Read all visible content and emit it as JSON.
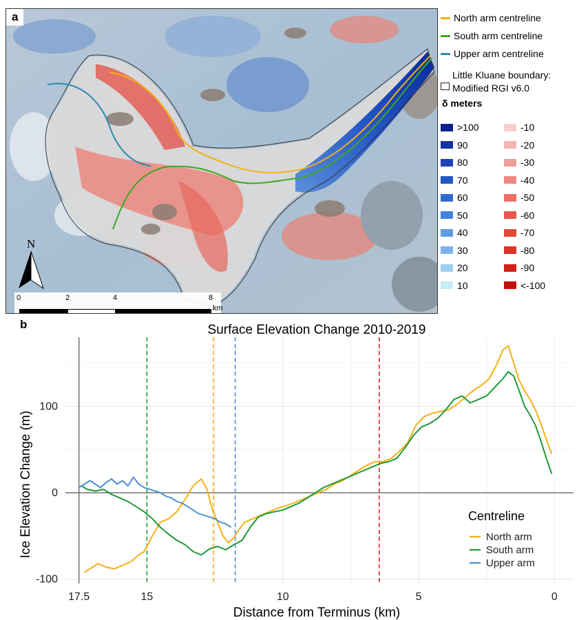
{
  "panel_a": {
    "letter": "a",
    "north_label": "N",
    "scale_labels": [
      "0",
      "2",
      "4",
      "8"
    ],
    "scale_unit": "km",
    "legend": {
      "lines": [
        {
          "label": "North arm centreline",
          "color": "#f5b014"
        },
        {
          "label": "South arm centreline",
          "color": "#3da81e"
        },
        {
          "label": "Upper arm centreline",
          "color": "#2a8bb0"
        }
      ],
      "boundary_line1": "Little Kluane boundary:",
      "boundary_line2": "Modified RGI v6.0",
      "delta_title": "δ meters",
      "blue_bins": [
        {
          "label": ">100",
          "color": "#0a1f8c"
        },
        {
          "label": "90",
          "color": "#1333a6"
        },
        {
          "label": "80",
          "color": "#1d44b6"
        },
        {
          "label": "70",
          "color": "#2456c4"
        },
        {
          "label": "60",
          "color": "#2f6bd0"
        },
        {
          "label": "50",
          "color": "#4484da"
        },
        {
          "label": "40",
          "color": "#5e9be2"
        },
        {
          "label": "30",
          "color": "#7cb2ea"
        },
        {
          "label": "20",
          "color": "#9fcdf0"
        },
        {
          "label": "10",
          "color": "#c3ecf4"
        }
      ],
      "red_bins": [
        {
          "label": "-10",
          "color": "#f7cfd0"
        },
        {
          "label": "-20",
          "color": "#f4b3b1"
        },
        {
          "label": "-30",
          "color": "#f19d97"
        },
        {
          "label": "-40",
          "color": "#ee877e"
        },
        {
          "label": "-50",
          "color": "#eb7065"
        },
        {
          "label": "-60",
          "color": "#e65a4d"
        },
        {
          "label": "-70",
          "color": "#e04838"
        },
        {
          "label": "-80",
          "color": "#d93426"
        },
        {
          "label": "-90",
          "color": "#d12217"
        },
        {
          "label": "<-100",
          "color": "#c4100a"
        }
      ]
    }
  },
  "panel_b": {
    "letter": "b"
  },
  "chart_data": {
    "type": "line",
    "title": "Surface Elevation Change 2010-2019",
    "xlabel": "Distance from Terminus (km)",
    "ylabel": "Ice Elevation Change (m)",
    "x_reversed": true,
    "xlim": [
      18,
      -0.7
    ],
    "ylim": [
      -105,
      180
    ],
    "x_ticks": [
      17.5,
      15,
      10,
      5,
      0
    ],
    "y_ticks": [
      -100,
      0,
      100
    ],
    "grid": true,
    "legend_title": "Centreline",
    "legend_position": "bottom-right",
    "series": [
      {
        "name": "North arm",
        "color": "#f5b014",
        "x": [
          17.3,
          17.1,
          16.8,
          16.5,
          16.2,
          15.9,
          15.6,
          15.3,
          15.1,
          14.8,
          14.5,
          14.2,
          13.9,
          13.6,
          13.3,
          13.0,
          12.8,
          12.6,
          12.4,
          12.2,
          12.0,
          11.8,
          11.6,
          11.4,
          11.1,
          10.8,
          10.5,
          10.2,
          9.9,
          9.6,
          9.3,
          9.0,
          8.7,
          8.4,
          8.1,
          7.8,
          7.5,
          7.2,
          6.9,
          6.6,
          6.3,
          6.0,
          5.7,
          5.4,
          5.1,
          4.8,
          4.5,
          4.2,
          3.9,
          3.6,
          3.3,
          3.0,
          2.7,
          2.4,
          2.1,
          1.9,
          1.7,
          1.5,
          1.3,
          1.1,
          0.9,
          0.7,
          0.5,
          0.3,
          0.1
        ],
        "y": [
          -92,
          -88,
          -82,
          -86,
          -88,
          -84,
          -80,
          -72,
          -68,
          -50,
          -34,
          -30,
          -22,
          -8,
          8,
          16,
          5,
          -18,
          -34,
          -50,
          -58,
          -52,
          -42,
          -34,
          -30,
          -26,
          -22,
          -18,
          -15,
          -12,
          -8,
          -4,
          0,
          4,
          10,
          14,
          20,
          26,
          32,
          36,
          36,
          40,
          48,
          58,
          78,
          88,
          92,
          94,
          96,
          102,
          110,
          118,
          124,
          132,
          150,
          165,
          170,
          150,
          130,
          118,
          108,
          96,
          80,
          62,
          45
        ]
      },
      {
        "name": "South arm",
        "color": "#1e9936",
        "x": [
          17.4,
          17.2,
          16.9,
          16.6,
          16.3,
          16.0,
          15.7,
          15.4,
          15.1,
          14.8,
          14.5,
          14.2,
          13.9,
          13.6,
          13.3,
          13.0,
          12.7,
          12.4,
          12.1,
          11.8,
          11.5,
          11.2,
          10.9,
          10.6,
          10.3,
          10.0,
          9.7,
          9.4,
          9.1,
          8.8,
          8.5,
          8.2,
          7.9,
          7.6,
          7.3,
          7.0,
          6.7,
          6.4,
          6.1,
          5.8,
          5.5,
          5.2,
          4.9,
          4.6,
          4.3,
          4.0,
          3.7,
          3.4,
          3.1,
          2.8,
          2.5,
          2.2,
          1.9,
          1.7,
          1.5,
          1.3,
          1.1,
          0.9,
          0.7,
          0.5,
          0.3,
          0.1
        ],
        "y": [
          8,
          4,
          2,
          4,
          -2,
          -6,
          -10,
          -16,
          -22,
          -30,
          -40,
          -48,
          -55,
          -60,
          -68,
          -72,
          -65,
          -62,
          -66,
          -60,
          -55,
          -40,
          -28,
          -24,
          -22,
          -20,
          -16,
          -12,
          -6,
          0,
          6,
          10,
          14,
          18,
          22,
          26,
          30,
          34,
          36,
          40,
          52,
          66,
          76,
          80,
          86,
          96,
          108,
          112,
          104,
          108,
          112,
          122,
          132,
          140,
          135,
          118,
          100,
          90,
          78,
          60,
          40,
          22
        ]
      },
      {
        "name": "Upper arm",
        "color": "#4d8fd6",
        "x": [
          17.5,
          17.3,
          17.1,
          16.9,
          16.7,
          16.5,
          16.3,
          16.1,
          15.9,
          15.7,
          15.5,
          15.3,
          15.1,
          14.9,
          14.7,
          14.5,
          14.3,
          14.1,
          13.9,
          13.7,
          13.5,
          13.3,
          13.1,
          12.9,
          12.7,
          12.5,
          12.3,
          12.1,
          11.9
        ],
        "y": [
          6,
          10,
          14,
          10,
          6,
          12,
          16,
          10,
          14,
          8,
          18,
          10,
          6,
          4,
          2,
          0,
          -4,
          -6,
          -10,
          -12,
          -16,
          -20,
          -24,
          -26,
          -28,
          -30,
          -34,
          -36,
          -40
        ]
      }
    ],
    "vlines": [
      {
        "x": 15.0,
        "color": "#1e9936"
      },
      {
        "x": 12.55,
        "color": "#f5b014"
      },
      {
        "x": 11.75,
        "color": "#4d8fd6"
      },
      {
        "x": 6.45,
        "color": "#e8241c"
      }
    ]
  }
}
